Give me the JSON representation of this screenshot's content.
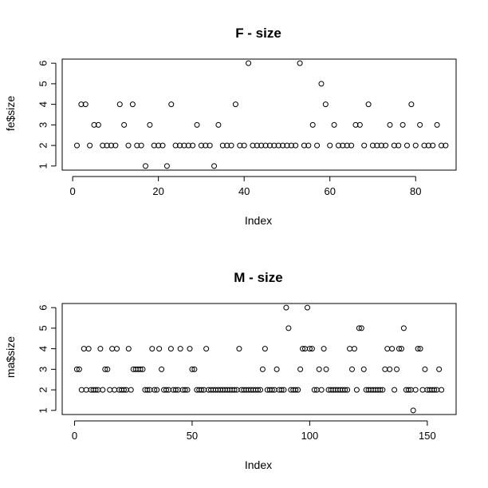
{
  "chart_data": [
    {
      "type": "scatter",
      "title": "F - size",
      "xlabel": "Index",
      "ylabel": "fe$size",
      "xlim": [
        -2.44,
        89.44
      ],
      "ylim": [
        0.8,
        6.2
      ],
      "x_ticks": [
        0,
        20,
        40,
        60,
        80
      ],
      "y_ticks": [
        1,
        2,
        3,
        4,
        5,
        6
      ],
      "x_tick_labels": [
        "0",
        "20",
        "40",
        "60",
        "80"
      ],
      "y_tick_labels": [
        "1",
        "2",
        "3",
        "4",
        "5",
        "6"
      ],
      "grid": false,
      "x": [
        1,
        2,
        3,
        4,
        5,
        6,
        7,
        8,
        9,
        10,
        11,
        12,
        13,
        14,
        15,
        16,
        17,
        18,
        19,
        20,
        21,
        22,
        23,
        24,
        25,
        26,
        27,
        28,
        29,
        30,
        31,
        32,
        33,
        34,
        35,
        36,
        37,
        38,
        39,
        40,
        41,
        42,
        43,
        44,
        45,
        46,
        47,
        48,
        49,
        50,
        51,
        52,
        53,
        54,
        55,
        56,
        57,
        58,
        59,
        60,
        61,
        62,
        63,
        64,
        65,
        66,
        67,
        68,
        69,
        70,
        71,
        72,
        73,
        74,
        75,
        76,
        77,
        78,
        79,
        80,
        81,
        82,
        83,
        84,
        85,
        86,
        87
      ],
      "y": [
        2,
        4,
        4,
        2,
        3,
        3,
        2,
        2,
        2,
        2,
        4,
        3,
        2,
        4,
        2,
        2,
        1,
        3,
        2,
        2,
        2,
        1,
        4,
        2,
        2,
        2,
        2,
        2,
        3,
        2,
        2,
        2,
        1,
        3,
        2,
        2,
        2,
        4,
        2,
        2,
        6,
        2,
        2,
        2,
        2,
        2,
        2,
        2,
        2,
        2,
        2,
        2,
        6,
        2,
        2,
        3,
        2,
        5,
        4,
        2,
        3,
        2,
        2,
        2,
        2,
        3,
        3,
        2,
        4,
        2,
        2,
        2,
        2,
        3,
        2,
        2,
        3,
        2,
        4,
        2,
        3,
        2,
        2,
        2,
        3,
        2,
        2
      ]
    },
    {
      "type": "scatter",
      "title": "M - size",
      "xlabel": "Index",
      "ylabel": "ma$size",
      "xlim": [
        -5.24,
        162.24
      ],
      "ylim": [
        0.8,
        6.2
      ],
      "x_ticks": [
        0,
        50,
        100,
        150
      ],
      "y_ticks": [
        1,
        2,
        3,
        4,
        5,
        6
      ],
      "x_tick_labels": [
        "0",
        "50",
        "100",
        "150"
      ],
      "y_tick_labels": [
        "1",
        "2",
        "3",
        "4",
        "5",
        "6"
      ],
      "grid": false,
      "x": [
        1,
        2,
        3,
        4,
        5,
        6,
        7,
        8,
        9,
        10,
        11,
        12,
        13,
        14,
        15,
        16,
        17,
        18,
        19,
        20,
        21,
        22,
        23,
        24,
        25,
        26,
        27,
        28,
        29,
        30,
        31,
        32,
        33,
        34,
        35,
        36,
        37,
        38,
        39,
        40,
        41,
        42,
        43,
        44,
        45,
        46,
        47,
        48,
        49,
        50,
        51,
        52,
        53,
        54,
        55,
        56,
        57,
        58,
        59,
        60,
        61,
        62,
        63,
        64,
        65,
        66,
        67,
        68,
        69,
        70,
        71,
        72,
        73,
        74,
        75,
        76,
        77,
        78,
        79,
        80,
        81,
        82,
        83,
        84,
        85,
        86,
        87,
        88,
        89,
        90,
        91,
        92,
        93,
        94,
        95,
        96,
        97,
        98,
        99,
        100,
        101,
        102,
        103,
        104,
        105,
        106,
        107,
        108,
        109,
        110,
        111,
        112,
        113,
        114,
        115,
        116,
        117,
        118,
        119,
        120,
        121,
        122,
        123,
        124,
        125,
        126,
        127,
        128,
        129,
        130,
        131,
        132,
        133,
        134,
        135,
        136,
        137,
        138,
        139,
        140,
        141,
        142,
        143,
        144,
        145,
        146,
        147,
        148,
        149,
        150,
        151,
        152,
        153,
        154,
        155,
        156
      ],
      "y": [
        3,
        3,
        2,
        4,
        2,
        4,
        2,
        2,
        2,
        2,
        4,
        2,
        3,
        3,
        2,
        4,
        2,
        4,
        2,
        2,
        2,
        2,
        4,
        2,
        3,
        3,
        3,
        3,
        3,
        2,
        2,
        2,
        4,
        2,
        2,
        4,
        3,
        2,
        2,
        2,
        4,
        2,
        2,
        2,
        4,
        2,
        2,
        2,
        4,
        3,
        3,
        2,
        2,
        2,
        2,
        4,
        2,
        2,
        2,
        2,
        2,
        2,
        2,
        2,
        2,
        2,
        2,
        2,
        2,
        4,
        2,
        2,
        2,
        2,
        2,
        2,
        2,
        2,
        2,
        3,
        4,
        2,
        2,
        2,
        2,
        3,
        2,
        2,
        2,
        6,
        5,
        2,
        2,
        2,
        2,
        3,
        4,
        4,
        6,
        4,
        4,
        2,
        2,
        3,
        2,
        4,
        3,
        2,
        2,
        2,
        2,
        2,
        2,
        2,
        2,
        2,
        4,
        3,
        4,
        2,
        5,
        5,
        3,
        2,
        2,
        2,
        2,
        2,
        2,
        2,
        2,
        3,
        4,
        3,
        4,
        2,
        3,
        4,
        4,
        5,
        2,
        2,
        2,
        1,
        2,
        4,
        4,
        2,
        3,
        2,
        2,
        2,
        2,
        2,
        3,
        2
      ]
    }
  ]
}
